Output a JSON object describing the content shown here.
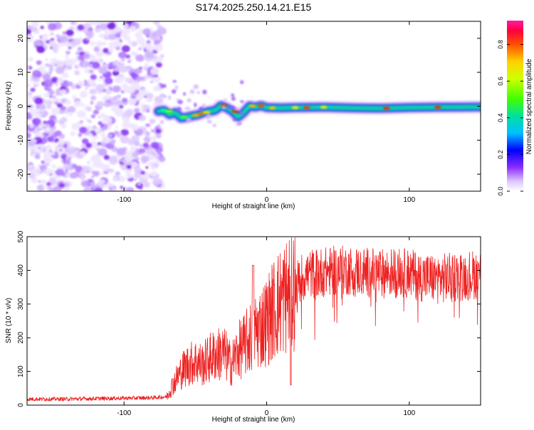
{
  "title": "S174.2025.250.14.21.E15",
  "chart_data": [
    {
      "type": "heatmap",
      "name": "spectrogram",
      "xlabel": "Height of straight line (km)",
      "ylabel": "Frequency (Hz)",
      "xlim": [
        -168,
        150
      ],
      "ylim": [
        -25,
        25
      ],
      "xticks": [
        -100,
        0,
        100
      ],
      "yticks": [
        -20,
        -10,
        0,
        10,
        20
      ],
      "noise_region_x": [
        -168,
        -76
      ],
      "signal_track": {
        "x": [
          -76,
          -72,
          -68,
          -64,
          -60,
          -56,
          -52,
          -48,
          -44,
          -40,
          -36,
          -32,
          -28,
          -24,
          -20,
          -16,
          -12,
          -8,
          -4,
          0,
          10,
          20,
          40,
          60,
          80,
          100,
          120,
          150
        ],
        "freq": [
          -1.5,
          -1.2,
          -2.5,
          -1.8,
          -3.5,
          -3.2,
          -2.8,
          -2.5,
          -1.8,
          -1.5,
          -1.2,
          0.2,
          -0.5,
          -1.5,
          -3.2,
          -1.8,
          0.1,
          -0.3,
          0.2,
          -0.4,
          -0.5,
          -0.4,
          -0.3,
          -0.5,
          -0.6,
          -0.4,
          -0.3,
          -0.2
        ]
      },
      "colorbar": {
        "label": "Normalized spectral amplitude",
        "ticks": [
          "0.0",
          "0.2",
          "0.4",
          "0.6",
          "0.8"
        ],
        "range": [
          0,
          0.93
        ]
      }
    },
    {
      "type": "line",
      "name": "snr",
      "xlabel": "Height of straight line (km)",
      "ylabel": "SNR (10 * v/v)",
      "xlim": [
        -168,
        150
      ],
      "ylim": [
        0,
        500
      ],
      "xticks": [
        -100,
        0,
        100
      ],
      "yticks": [
        0,
        100,
        200,
        300,
        400,
        500
      ],
      "color": "#ee2222",
      "series": [
        {
          "name": "SNR",
          "x": [
            -168,
            -140,
            -110,
            -80,
            -70,
            -66,
            -60,
            -55,
            -50,
            -45,
            -40,
            -35,
            -30,
            -25,
            -20,
            -15,
            -10,
            -5,
            0,
            5,
            10,
            15,
            20,
            25,
            30,
            40,
            50,
            60,
            70,
            80,
            90,
            100,
            110,
            120,
            130,
            140,
            150
          ],
          "values": [
            18,
            18,
            20,
            22,
            25,
            60,
            100,
            120,
            130,
            120,
            140,
            150,
            155,
            120,
            160,
            180,
            210,
            230,
            250,
            285,
            310,
            330,
            350,
            380,
            390,
            395,
            400,
            400,
            395,
            390,
            395,
            390,
            380,
            375,
            380,
            385,
            390
          ]
        }
      ]
    }
  ]
}
